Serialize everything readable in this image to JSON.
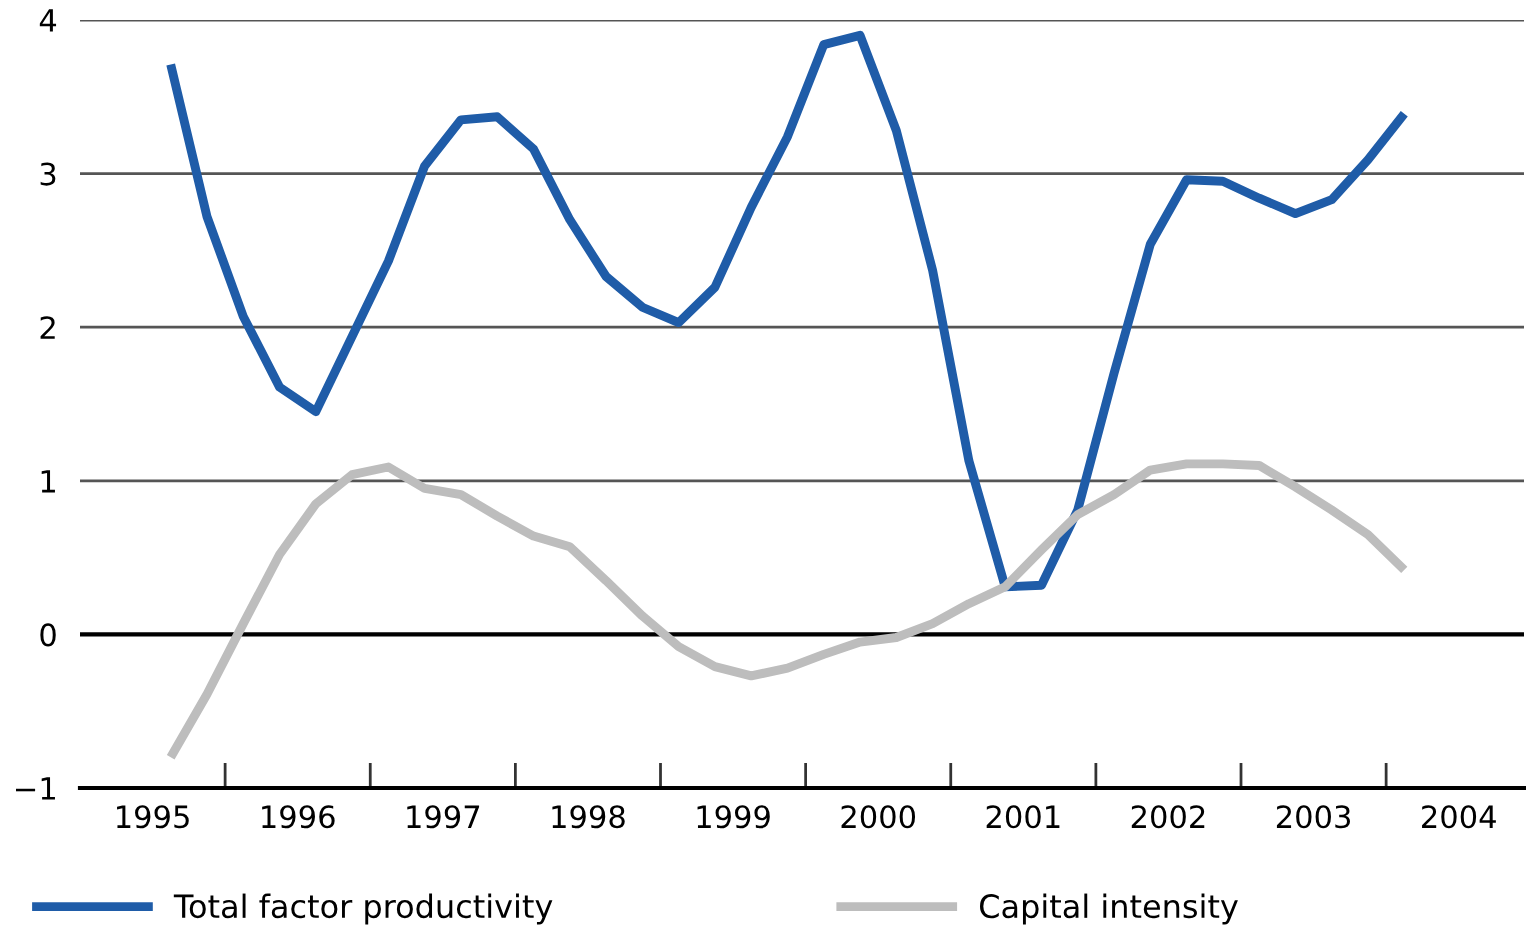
{
  "chart_data": {
    "type": "line",
    "x": [
      1995.625,
      1995.875,
      1996.125,
      1996.375,
      1996.625,
      1996.875,
      1997.125,
      1997.375,
      1997.625,
      1997.875,
      1998.125,
      1998.375,
      1998.625,
      1998.875,
      1999.125,
      1999.375,
      1999.625,
      1999.875,
      2000.125,
      2000.375,
      2000.625,
      2000.875,
      2001.125,
      2001.375,
      2001.625,
      2001.875,
      2002.125,
      2002.375,
      2002.625,
      2002.875,
      2003.125,
      2003.375,
      2003.625,
      2003.875,
      2004.125
    ],
    "series": [
      {
        "name": "Total factor productivity",
        "color": "#1f5ca8",
        "values": [
          3.71,
          2.72,
          2.07,
          1.61,
          1.45,
          1.94,
          2.43,
          3.05,
          3.35,
          3.37,
          3.16,
          2.7,
          2.33,
          2.13,
          2.03,
          2.26,
          2.78,
          3.24,
          3.84,
          3.9,
          3.28,
          2.37,
          1.13,
          0.31,
          0.32,
          0.81,
          1.7,
          2.54,
          2.96,
          2.95,
          2.84,
          2.74,
          2.83,
          3.09,
          3.39
        ]
      },
      {
        "name": "Capital intensity",
        "color": "#bdbdbd",
        "values": [
          -0.8,
          -0.39,
          0.07,
          0.52,
          0.85,
          1.04,
          1.09,
          0.95,
          0.91,
          0.77,
          0.64,
          0.57,
          0.35,
          0.12,
          -0.08,
          -0.21,
          -0.27,
          -0.22,
          -0.13,
          -0.05,
          -0.02,
          0.07,
          0.2,
          0.31,
          0.55,
          0.78,
          0.91,
          1.07,
          1.11,
          1.11,
          1.1,
          0.96,
          0.81,
          0.65,
          0.42
        ]
      }
    ],
    "xlim": [
      1995,
      2004.95
    ],
    "xticks": [
      {
        "value": 1995.5,
        "label": "1995"
      },
      {
        "value": 1996,
        "label": null
      },
      {
        "value": 1996.5,
        "label": "1996"
      },
      {
        "value": 1997,
        "label": null
      },
      {
        "value": 1997.5,
        "label": "1997"
      },
      {
        "value": 1998,
        "label": null
      },
      {
        "value": 1998.5,
        "label": "1998"
      },
      {
        "value": 1999,
        "label": null
      },
      {
        "value": 1999.5,
        "label": "1999"
      },
      {
        "value": 2000,
        "label": null
      },
      {
        "value": 2000.5,
        "label": "2000"
      },
      {
        "value": 2001,
        "label": null
      },
      {
        "value": 2001.5,
        "label": "2001"
      },
      {
        "value": 2002,
        "label": null
      },
      {
        "value": 2002.5,
        "label": "2002"
      },
      {
        "value": 2003,
        "label": null
      },
      {
        "value": 2003.5,
        "label": "2003"
      },
      {
        "value": 2004,
        "label": null
      },
      {
        "value": 2004.5,
        "label": "2004"
      }
    ],
    "ylim": [
      -1,
      4
    ],
    "yticks": [
      {
        "value": -1,
        "label": "−1"
      },
      0,
      1,
      2,
      3,
      4
    ],
    "grid": "y",
    "ref_lines": [
      {
        "axis": "y",
        "value": 0,
        "label": null,
        "color": "#000000"
      }
    ],
    "legend": "bottom",
    "line_style": "solid",
    "marker": "none"
  }
}
